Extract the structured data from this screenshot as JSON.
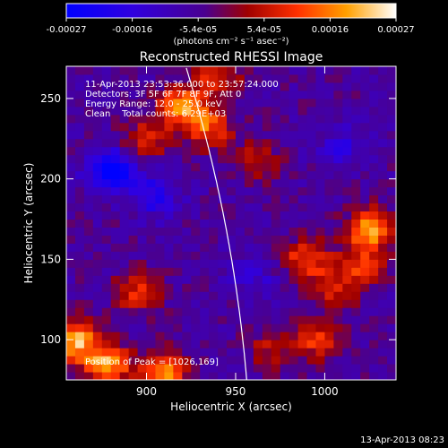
{
  "chart_data": {
    "type": "heatmap",
    "title": "Reconstructed RHESSI Image",
    "xlabel": "Heliocentric X (arcsec)",
    "ylabel": "Heliocentric Y (arcsec)",
    "xlim": [
      855,
      1040
    ],
    "ylim": [
      75,
      270
    ],
    "xticks": [
      900,
      950,
      1000
    ],
    "yticks": [
      100,
      150,
      200,
      250
    ],
    "colorbar": {
      "min": -0.00027,
      "max": 0.00027,
      "tick_labels": [
        "-0.00027",
        "-0.00016",
        "-5.4e-05",
        "5.4e-05",
        "0.00016",
        "0.00027"
      ],
      "label": "(photons cm⁻² s⁻¹ asec⁻²)",
      "colors": [
        "#0000ff",
        "#5a00c8",
        "#a00000",
        "#ff3000",
        "#ffa000",
        "#ffffff"
      ]
    },
    "annotations": [
      "11-Apr-2013 23:53:36.000 to 23:57:24.000",
      "Detectors: 3F 5F 6F 7F 8F 9F, Att 0",
      "Energy Range: 12.0 - 25.0 keV",
      "Clean    Total counts: 6.29E+03"
    ],
    "peak_text": "Position of Peak = [1026,169]",
    "limb": "solar-limb-curve",
    "hotspots": [
      {
        "x": 920,
        "y": 245,
        "value": 0.00025
      },
      {
        "x": 935,
        "y": 232,
        "value": 0.00018
      },
      {
        "x": 900,
        "y": 225,
        "value": 0.00014
      },
      {
        "x": 860,
        "y": 100,
        "value": 0.00027
      },
      {
        "x": 878,
        "y": 85,
        "value": 0.00026
      },
      {
        "x": 910,
        "y": 80,
        "value": 0.00024
      },
      {
        "x": 895,
        "y": 130,
        "value": 0.00015
      },
      {
        "x": 1026,
        "y": 169,
        "value": 0.00027
      },
      {
        "x": 1020,
        "y": 145,
        "value": 0.00016
      },
      {
        "x": 990,
        "y": 150,
        "value": 0.00018
      },
      {
        "x": 995,
        "y": 100,
        "value": 0.00015
      },
      {
        "x": 1005,
        "y": 130,
        "value": 0.00012
      },
      {
        "x": 962,
        "y": 212,
        "value": 0.00012
      },
      {
        "x": 940,
        "y": 265,
        "value": 0.00015
      },
      {
        "x": 970,
        "y": 95,
        "value": 0.0001
      },
      {
        "x": 880,
        "y": 205,
        "value": -0.00025
      },
      {
        "x": 905,
        "y": 190,
        "value": -0.00014
      },
      {
        "x": 1010,
        "y": 220,
        "value": -0.0001
      },
      {
        "x": 960,
        "y": 140,
        "value": -8e-05
      }
    ]
  },
  "timestamp": "13-Apr-2013 08:23"
}
